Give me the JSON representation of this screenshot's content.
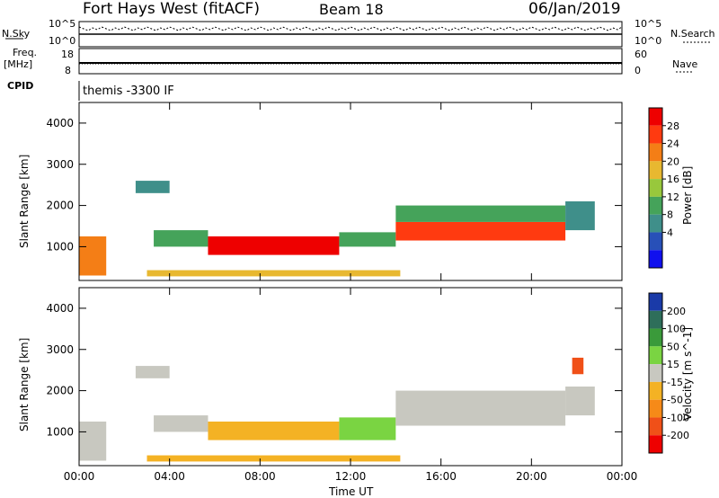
{
  "header": {
    "station": "Fort Hays West (fitACF)",
    "beam": "Beam 18",
    "date": "06/Jan/2019"
  },
  "top_panels": {
    "nsky_label": "N.Sky",
    "nsearch_label": "N.Search",
    "noise_ticks": [
      "10^5",
      "10^0"
    ],
    "freq_label_1": "Freq.",
    "freq_label_2": "[MHz]",
    "freq_ticks": [
      "18",
      "8"
    ],
    "nave_label": "Nave",
    "nave_ticks": [
      "60",
      "0"
    ],
    "cpid_label": "CPID",
    "cpid_value": "themis -3300 IF"
  },
  "chart_data": [
    {
      "type": "heatmap",
      "title": "",
      "xlabel": "",
      "ylabel": "Slant Range [km]",
      "xlim": [
        "00:00",
        "24:00"
      ],
      "ylim": [
        180,
        4500
      ],
      "x_ticks": [
        "00:00",
        "04:00",
        "08:00",
        "12:00",
        "16:00",
        "20:00",
        "00:00"
      ],
      "y_ticks": [
        1000,
        2000,
        3000,
        4000
      ],
      "colorbar_label": "Power [dB]",
      "colorbar_ticks": [
        4,
        8,
        12,
        16,
        20,
        24,
        28
      ],
      "colorbar_colors": [
        "#1010ee",
        "#2850b8",
        "#3f8f8a",
        "#45a35a",
        "#98c83c",
        "#e8b830",
        "#f47e16",
        "#ff3a10",
        "#ee0000"
      ],
      "colorbar_range": [
        0,
        32
      ],
      "regions": [
        {
          "t0": 0.0,
          "t1": 1.2,
          "r0": 300,
          "r1": 1250,
          "value": 24
        },
        {
          "t0": 3.3,
          "t1": 5.7,
          "r0": 1000,
          "r1": 1400,
          "value": 13
        },
        {
          "t0": 5.7,
          "t1": 11.5,
          "r0": 800,
          "r1": 1250,
          "value": 29
        },
        {
          "t0": 11.5,
          "t1": 14.0,
          "r0": 1000,
          "r1": 1350,
          "value": 14
        },
        {
          "t0": 3.0,
          "t1": 14.2,
          "r0": 280,
          "r1": 430,
          "value": 20
        },
        {
          "t0": 14.0,
          "t1": 21.5,
          "r0": 1150,
          "r1": 1600,
          "value": 28
        },
        {
          "t0": 14.0,
          "t1": 21.5,
          "r0": 1600,
          "r1": 2000,
          "value": 14
        },
        {
          "t0": 21.5,
          "t1": 22.8,
          "r0": 1400,
          "r1": 2100,
          "value": 10
        },
        {
          "t0": 2.5,
          "t1": 4.0,
          "r0": 2300,
          "r1": 2600,
          "value": 8
        }
      ]
    },
    {
      "type": "heatmap",
      "title": "",
      "xlabel": "Time UT",
      "ylabel": "Slant Range [km]",
      "xlim": [
        "00:00",
        "24:00"
      ],
      "ylim": [
        180,
        4500
      ],
      "x_ticks": [
        "00:00",
        "04:00",
        "08:00",
        "12:00",
        "16:00",
        "20:00",
        "00:00"
      ],
      "y_ticks": [
        1000,
        2000,
        3000,
        4000
      ],
      "colorbar_label": "Velocity [m s^-1]",
      "colorbar_ticks": [
        200,
        100,
        50,
        15,
        -15,
        -50,
        -100,
        -200
      ],
      "colorbar_colors": [
        "#1a3aa8",
        "#2e6e5a",
        "#3a9a3a",
        "#7ad442",
        "#c8c8c0",
        "#f4b224",
        "#f68a18",
        "#f05018",
        "#ee0000"
      ],
      "regions": [
        {
          "t0": 0.0,
          "t1": 1.2,
          "r0": 300,
          "r1": 1250,
          "value": 0
        },
        {
          "t0": 3.3,
          "t1": 5.7,
          "r0": 1000,
          "r1": 1400,
          "value": 0
        },
        {
          "t0": 5.7,
          "t1": 11.5,
          "r0": 800,
          "r1": 1250,
          "value": -40
        },
        {
          "t0": 11.5,
          "t1": 14.0,
          "r0": 800,
          "r1": 1350,
          "value": 30
        },
        {
          "t0": 3.0,
          "t1": 14.2,
          "r0": 280,
          "r1": 430,
          "value": -40
        },
        {
          "t0": 14.0,
          "t1": 21.5,
          "r0": 1150,
          "r1": 2000,
          "value": 0
        },
        {
          "t0": 21.5,
          "t1": 22.8,
          "r0": 1400,
          "r1": 2100,
          "value": 0
        },
        {
          "t0": 2.5,
          "t1": 4.0,
          "r0": 2300,
          "r1": 2600,
          "value": 0
        },
        {
          "t0": 21.8,
          "t1": 22.3,
          "r0": 2400,
          "r1": 2800,
          "value": -150
        }
      ]
    }
  ]
}
